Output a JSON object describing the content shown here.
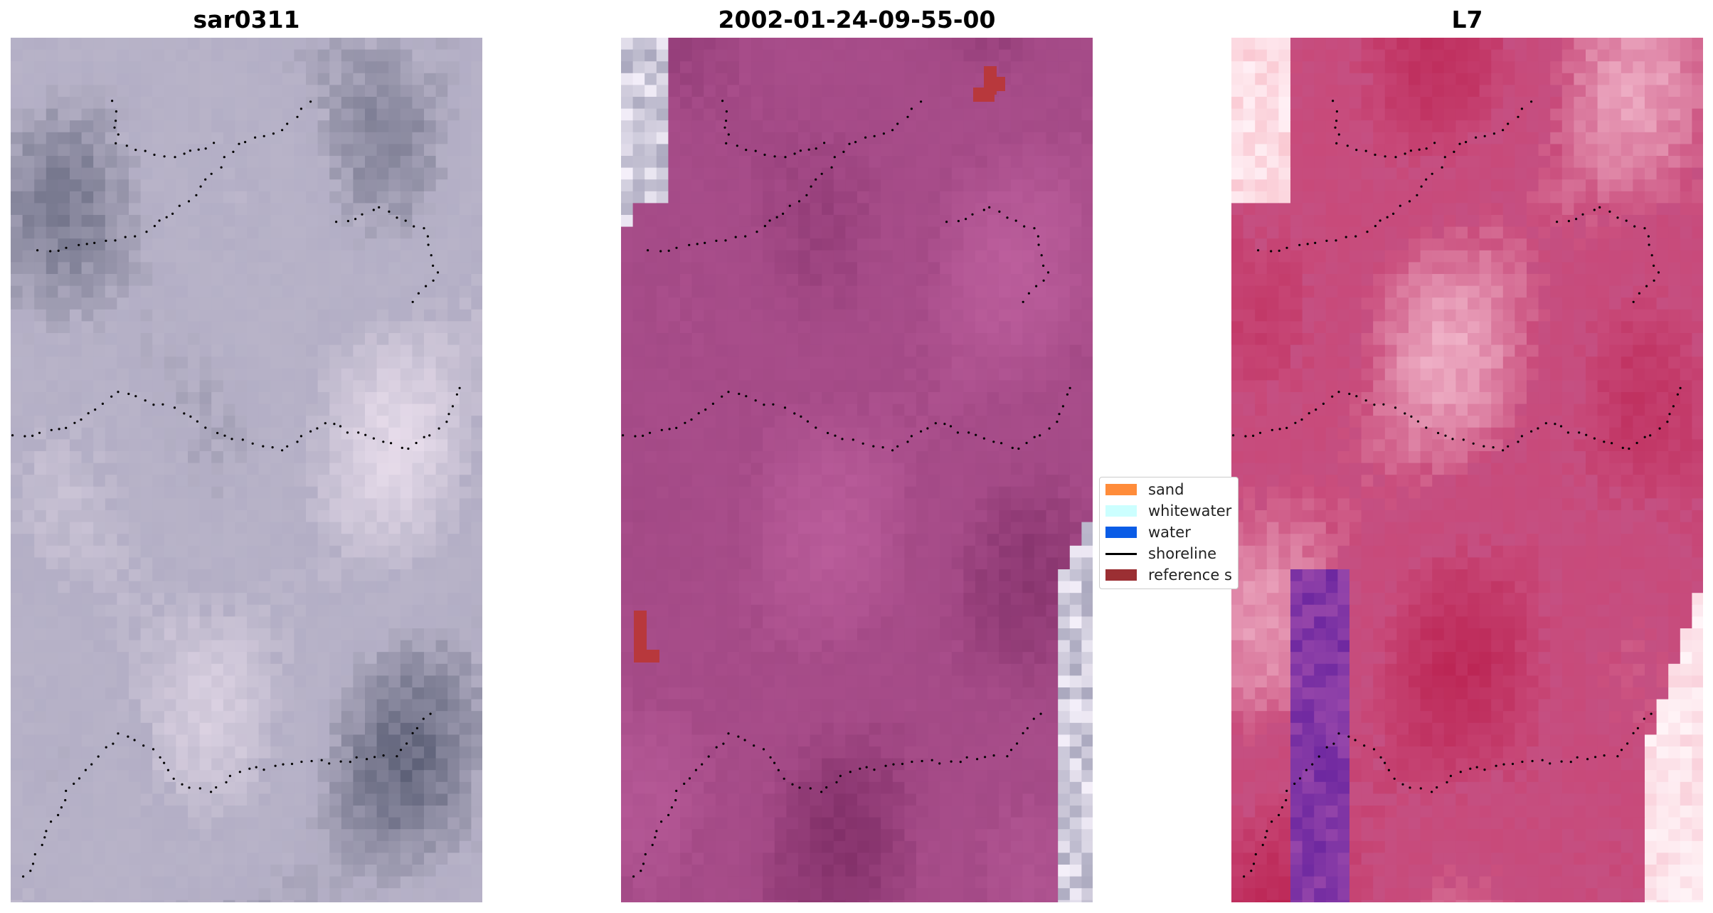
{
  "panels": [
    {
      "title": "sar0311",
      "palette": {
        "base": "#b8b3c8",
        "light": "#f3e6f3",
        "dark": "#4a4f66",
        "accent": "#9a96b8"
      }
    },
    {
      "title": "2002-01-24-09-55-00",
      "palette": {
        "base": "#a84d8a",
        "light": "#c062a0",
        "dark": "#7a2a62",
        "accent": "#8e3a74"
      }
    },
    {
      "title": "L7",
      "palette": {
        "base": "#c84a7a",
        "light": "#f8c8d8",
        "dark": "#b81a48",
        "accent": "#b46aa8"
      }
    }
  ],
  "legend": {
    "items": [
      {
        "label": "sand",
        "color": "#ff8c3a",
        "kind": "swatch"
      },
      {
        "label": "whitewater",
        "color": "#ccffff",
        "kind": "swatch"
      },
      {
        "label": "water",
        "color": "#0a5ce6",
        "kind": "swatch"
      },
      {
        "label": "shoreline",
        "color": "#000000",
        "kind": "line"
      },
      {
        "label": "reference s",
        "color": "#9b2f33",
        "kind": "swatch"
      }
    ]
  }
}
